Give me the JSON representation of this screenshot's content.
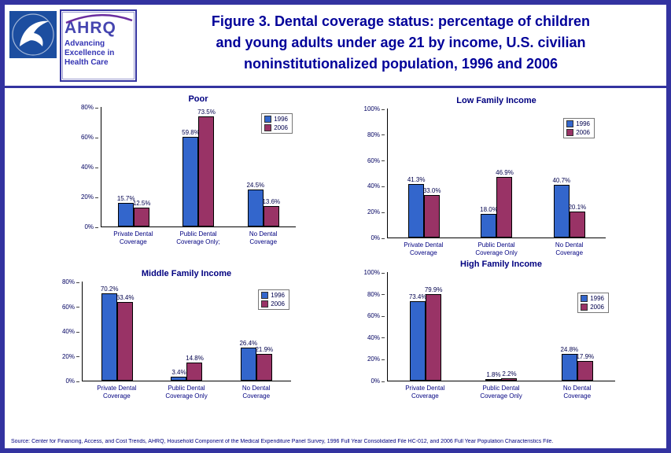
{
  "header": {
    "title_lines": [
      "Figure 3. Dental coverage status: percentage of children",
      "and young adults under age 21 by income, U.S. civilian",
      "noninstitutionalized population, 1996 and 2006"
    ]
  },
  "logos": {
    "ahrq_acronym": "AHRQ",
    "ahrq_tagline_lines": [
      "Advancing",
      "Excellence in",
      "Health Care"
    ]
  },
  "colors": {
    "series_1996": "#3366CC",
    "series_2006": "#993366",
    "border": "#3333A0",
    "title_text": "#000099"
  },
  "chart_data": [
    {
      "type": "bar",
      "title": "Poor",
      "categories": [
        "Private Dental\nCoverage",
        "Public Dental\nCoverage Only;",
        "No Dental\nCoverage"
      ],
      "series": [
        {
          "name": "1996",
          "color": "#3366CC",
          "values": [
            15.7,
            59.8,
            24.5
          ]
        },
        {
          "name": "2006",
          "color": "#993366",
          "values": [
            12.5,
            73.5,
            13.6
          ]
        }
      ],
      "ylim": [
        0,
        80
      ],
      "yticks": [
        "0%",
        "20%",
        "40%",
        "60%",
        "80%"
      ],
      "grid": false,
      "legend_position": "top-right"
    },
    {
      "type": "bar",
      "title": "Low Family Income",
      "categories": [
        "Private Dental\nCoverage",
        "Public Dental\nCoverage Only",
        "No Dental\nCoverage"
      ],
      "series": [
        {
          "name": "1996",
          "color": "#3366CC",
          "values": [
            41.3,
            18.0,
            40.7
          ]
        },
        {
          "name": "2006",
          "color": "#993366",
          "values": [
            33.0,
            46.9,
            20.1
          ]
        }
      ],
      "ylim": [
        0,
        100
      ],
      "yticks": [
        "0%",
        "20%",
        "40%",
        "60%",
        "80%",
        "100%"
      ],
      "grid": false,
      "legend_position": "top-right"
    },
    {
      "type": "bar",
      "title": "Middle Family Income",
      "categories": [
        "Private Dental\nCoverage",
        "Public Dental\nCoverage Only",
        "No Dental\nCoverage"
      ],
      "series": [
        {
          "name": "1996",
          "color": "#3366CC",
          "values": [
            70.2,
            3.4,
            26.4
          ]
        },
        {
          "name": "2006",
          "color": "#993366",
          "values": [
            63.4,
            14.8,
            21.9
          ]
        }
      ],
      "ylim": [
        0,
        80
      ],
      "yticks": [
        "0%",
        "20%",
        "40%",
        "60%",
        "80%"
      ],
      "grid": false,
      "legend_position": "top-right"
    },
    {
      "type": "bar",
      "title": "High Family Income",
      "categories": [
        "Private Dental\nCoverage",
        "Public Dental\nCoverage Only",
        "No Dental\nCoverage"
      ],
      "series": [
        {
          "name": "1996",
          "color": "#3366CC",
          "values": [
            73.4,
            1.8,
            24.8
          ]
        },
        {
          "name": "2006",
          "color": "#993366",
          "values": [
            79.9,
            2.2,
            17.9
          ]
        }
      ],
      "ylim": [
        0,
        100
      ],
      "yticks": [
        "0%",
        "20%",
        "40%",
        "60%",
        "80%",
        "100%"
      ],
      "grid": false,
      "legend_position": "top-right"
    }
  ],
  "source": "Source: Center for Financing, Access, and Cost Trends, AHRQ, Household Component of the Medical Expenditure Panel Survey, 1996 Full Year Consolidated File HC-012, and 2006 Full Year Population Characteristics File."
}
